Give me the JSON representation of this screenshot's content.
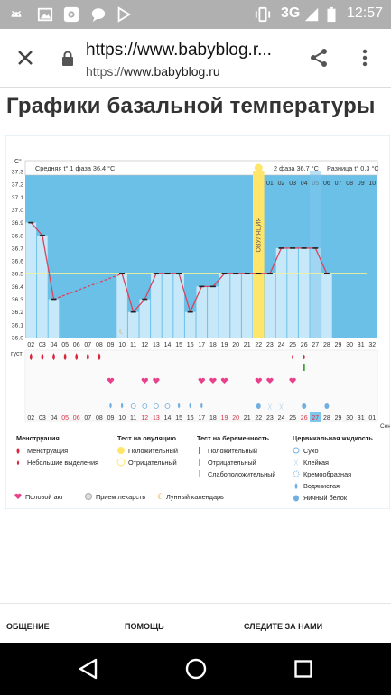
{
  "statusbar": {
    "network": "3G",
    "time": "12:57",
    "icons": [
      "android-icon",
      "image-icon",
      "flower-app-icon",
      "chat-icon",
      "play-store-icon",
      "vibrate-icon",
      "network-signal-icon",
      "battery-icon"
    ]
  },
  "browser": {
    "title": "https://www.babyblog.r...",
    "url_scheme": "https://",
    "url_host": "www.babyblog.ru",
    "icons": [
      "close-icon",
      "lock-icon",
      "share-icon",
      "overflow-menu-icon"
    ]
  },
  "page": {
    "title": "Графики базальной температуры"
  },
  "chart_data": {
    "type": "line",
    "ylabel": "C°",
    "yticks": [
      "36.0",
      "36.1",
      "36.2",
      "36.3",
      "36.4",
      "36.5",
      "36.6",
      "36.7",
      "36.8",
      "36.9",
      "37.0",
      "37.1",
      "37.2",
      "37.3"
    ],
    "ylim": [
      36.0,
      37.3
    ],
    "days": [
      "02",
      "03",
      "04",
      "05",
      "06",
      "07",
      "08",
      "09",
      "10",
      "11",
      "12",
      "13",
      "14",
      "15",
      "16",
      "17",
      "18",
      "19",
      "20",
      "21",
      "22",
      "23",
      "24",
      "25",
      "26",
      "27",
      "28",
      "29",
      "30",
      "31",
      "32"
    ],
    "cycle_days_top": [
      "01",
      "02",
      "03",
      "04",
      "05",
      "06",
      "07",
      "08",
      "09",
      "10"
    ],
    "dates": [
      "02",
      "03",
      "04",
      "05",
      "06",
      "07",
      "08",
      "09",
      "10",
      "11",
      "12",
      "13",
      "14",
      "15",
      "16",
      "17",
      "18",
      "19",
      "20",
      "21",
      "22",
      "23",
      "24",
      "25",
      "26",
      "27",
      "28",
      "29",
      "30",
      "31",
      "01"
    ],
    "red_dates": [
      "05",
      "06",
      "12",
      "13",
      "19",
      "20",
      "26",
      "27"
    ],
    "month_label": "густ",
    "month_label_right": "Сен",
    "temps": [
      36.9,
      36.8,
      36.3,
      null,
      null,
      null,
      null,
      null,
      36.5,
      36.2,
      36.3,
      36.5,
      36.5,
      36.5,
      36.2,
      36.4,
      36.4,
      36.5,
      36.5,
      36.5,
      36.5,
      36.5,
      36.7,
      36.7,
      36.7,
      36.7,
      36.5
    ],
    "coverline": 36.5,
    "phase1_avg": "Средняя t° 1 фаза 36.4 °C",
    "phase2_avg": "2 фаза 36.7 °C",
    "diff": "Разница t° 0.3 °C",
    "ovulation_label": "ОВУЛЯЦИЯ",
    "ovulation_day": "22",
    "today": "27",
    "menstruation_days": [
      "02",
      "03",
      "04",
      "05",
      "06",
      "07",
      "08"
    ],
    "small_bleeding_days": [
      "25",
      "26"
    ],
    "pregnancy_test_day": "26",
    "intercourse_days": [
      "09",
      "12",
      "13",
      "17",
      "18",
      "19",
      "22",
      "23",
      "25"
    ],
    "lunar_day": "10",
    "cervical": {
      "watery": [
        "09",
        "10",
        "15",
        "16",
        "17"
      ],
      "dry": [
        "11",
        "12",
        "13",
        "14"
      ],
      "eggwhite": [
        "22",
        "26",
        "28"
      ],
      "sticky": [
        "23",
        "24"
      ]
    }
  },
  "legend": {
    "menstr": {
      "title": "Менструация",
      "items": [
        "Менструация",
        "Небольшие выделения"
      ]
    },
    "ovul": {
      "title": "Тест на овуляцию",
      "items": [
        "Положительный",
        "Отрицательный"
      ]
    },
    "preg": {
      "title": "Тест на беременность",
      "items": [
        "Положительный",
        "Отрицательный",
        "Слабоположительный"
      ]
    },
    "cerv": {
      "title": "Цервикальная жидкость",
      "items": [
        "Сухо",
        "Клейкая",
        "Кремообразная",
        "Водянистая",
        "Яичный белок"
      ]
    },
    "bottom": [
      "Половой акт",
      "Прием лекарств",
      "Лунный календарь"
    ]
  },
  "footer": {
    "col1": "ОБЩЕНИЕ",
    "col2": "ПОМОЩЬ",
    "col3": "СЛЕДИТЕ ЗА НАМИ"
  },
  "colors": {
    "accent": "#6bc0e8",
    "bar": "#c7e8f8",
    "line": "#d9445e",
    "ovul": "#ffe66b",
    "today": "#7fc6ec",
    "drop": "#d9253a",
    "heart": "#e8408a",
    "cerv": "#72aee0"
  }
}
